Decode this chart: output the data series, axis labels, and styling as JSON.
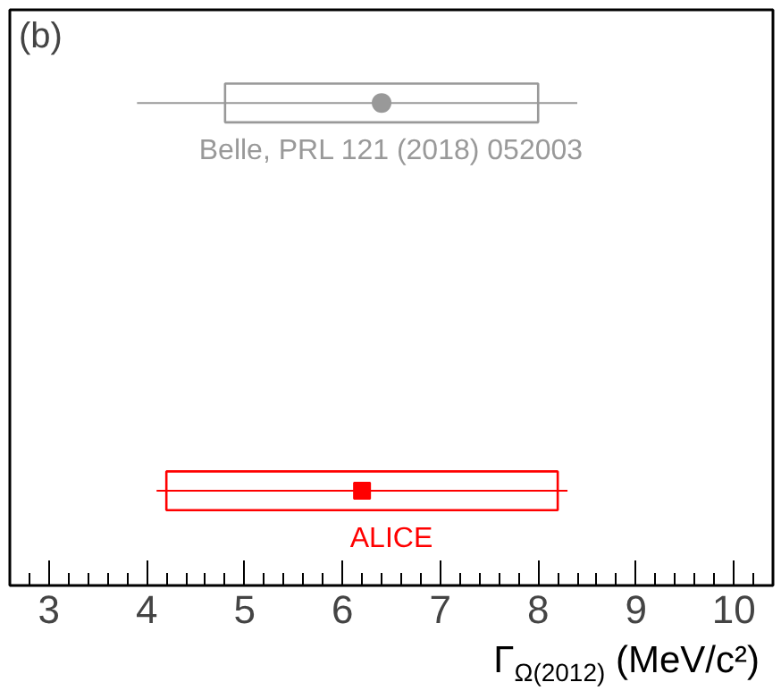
{
  "chart_data": {
    "type": "bar",
    "orientation": "horizontal",
    "title": "(b)",
    "xlabel": "Γ$_{Ω(2012)}$ (MeV/c²)",
    "categories": [
      "Belle, PRL 121 (2018) 052003",
      "ALICE"
    ],
    "xlim": [
      2.6,
      10.4
    ],
    "xticks": [
      3,
      4,
      5,
      6,
      7,
      8,
      9,
      10
    ],
    "grid": false,
    "legend": false,
    "tick_labels": "x",
    "series": [
      {
        "color": "#999999",
        "values": [
          3.2,
          null
        ],
        "base": [
          4.8,
          null
        ]
      },
      {
        "color": "#ff0000",
        "values": [
          null,
          4.0
        ],
        "base": [
          null,
          4.2
        ]
      },
      {
        "type": "scatter",
        "color": "#999999",
        "marker": "circle",
        "values": [
          6.4,
          null
        ],
        "errors": [
          [
            3.9,
            8.4
          ],
          null
        ]
      },
      {
        "type": "scatter",
        "color": "#ff0000",
        "marker": "square",
        "values": [
          null,
          6.2
        ],
        "errors": [
          null,
          [
            4.1,
            8.3
          ]
        ]
      }
    ]
  }
}
